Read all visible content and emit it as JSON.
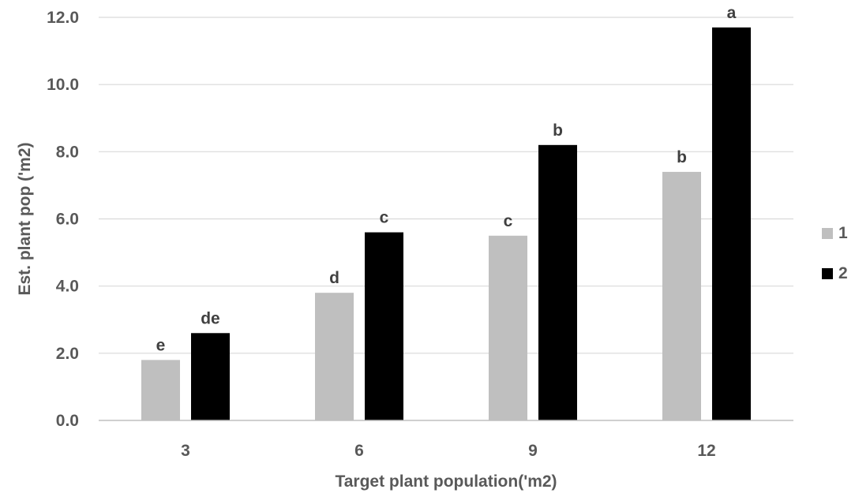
{
  "chart_data": {
    "type": "bar",
    "title": "",
    "xlabel": "Target plant population('m2)",
    "ylabel": "Est. plant pop ('m2)",
    "categories": [
      "3",
      "6",
      "9",
      "12"
    ],
    "ylim": [
      0,
      12
    ],
    "yticks": [
      "0.0",
      "2.0",
      "4.0",
      "6.0",
      "8.0",
      "10.0",
      "12.0"
    ],
    "grid": true,
    "legend_position": "right",
    "series": [
      {
        "name": "1",
        "color": "#bfbfbf",
        "values": [
          1.8,
          3.8,
          5.5,
          7.4
        ],
        "labels": [
          "e",
          "d",
          "c",
          "b"
        ]
      },
      {
        "name": "2",
        "color": "#000000",
        "values": [
          2.6,
          5.6,
          8.2,
          11.7
        ],
        "labels": [
          "de",
          "c",
          "b",
          "a"
        ]
      }
    ]
  }
}
